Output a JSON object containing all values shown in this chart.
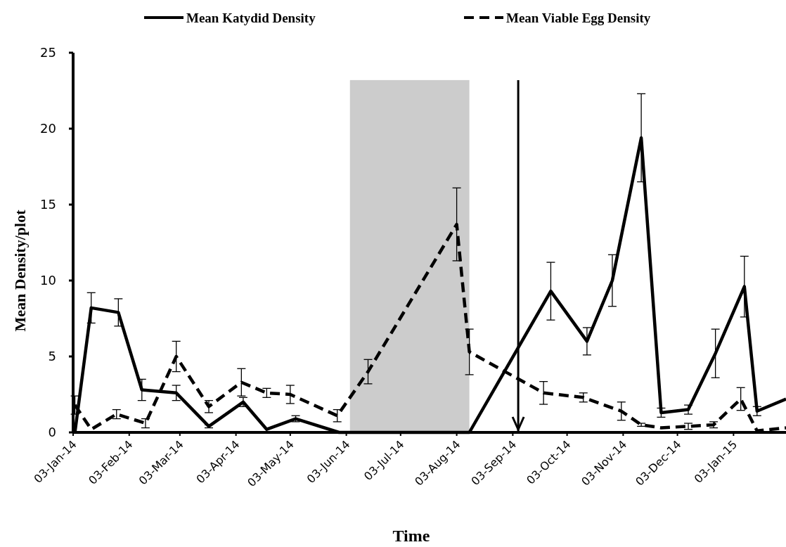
{
  "chart_data": {
    "type": "line",
    "xlabel": "Time",
    "ylabel": "Mean Density/plot",
    "legend": "top",
    "marker": "none",
    "grid": false,
    "xlim": [
      "2014-01-03",
      "2015-02-01"
    ],
    "ylim": [
      0,
      25
    ],
    "yticks": [
      0,
      5,
      10,
      15,
      20,
      25
    ],
    "xticks": [
      {
        "value": "2014-01-03",
        "label": "03-Jan-14"
      },
      {
        "value": "2014-02-03",
        "label": "03-Feb-14"
      },
      {
        "value": "2014-03-03",
        "label": "03-Mar-14"
      },
      {
        "value": "2014-04-03",
        "label": "03-Apr-14"
      },
      {
        "value": "2014-05-03",
        "label": "03-May-14"
      },
      {
        "value": "2014-06-03",
        "label": "03-Jun-14"
      },
      {
        "value": "2014-07-03",
        "label": "03-Jul-14"
      },
      {
        "value": "2014-08-03",
        "label": "03-Aug-14"
      },
      {
        "value": "2014-09-03",
        "label": "03-Sep-14"
      },
      {
        "value": "2014-10-03",
        "label": "03-Oct-14"
      },
      {
        "value": "2014-11-03",
        "label": "03-Nov-14"
      },
      {
        "value": "2014-12-03",
        "label": "03-Dec-14"
      },
      {
        "value": "2015-01-03",
        "label": "03-Jan-15"
      }
    ],
    "series": [
      {
        "name": "Mean Katydid Density",
        "color": "#000000",
        "line_style": "solid",
        "x": [
          "2014-01-04",
          "2014-01-13",
          "2014-01-28",
          "2014-02-10",
          "2014-03-01",
          "2014-03-19",
          "2014-04-07",
          "2014-04-20",
          "2014-05-06",
          "2014-05-30",
          "2014-08-10",
          "2014-09-24",
          "2014-10-14",
          "2014-10-28",
          "2014-11-13",
          "2014-11-24",
          "2014-12-09",
          "2014-12-24",
          "2015-01-09",
          "2015-01-16",
          "2015-02-01"
        ],
        "values": [
          0,
          8.2,
          7.9,
          2.8,
          2.6,
          0.4,
          2.0,
          0.2,
          0.9,
          0,
          0,
          9.3,
          6.0,
          10.0,
          19.4,
          1.3,
          1.5,
          5.2,
          9.6,
          1.4,
          2.2
        ],
        "errors": [
          null,
          1.0,
          0.9,
          0.7,
          0.5,
          0.1,
          0.3,
          null,
          0.2,
          null,
          null,
          1.9,
          0.9,
          1.7,
          2.9,
          0.3,
          0.3,
          1.6,
          2.0,
          0.3,
          null
        ]
      },
      {
        "name": "Mean Viable Egg Density",
        "color": "#000000",
        "line_style": "dashed",
        "x": [
          "2014-01-04",
          "2014-01-13",
          "2014-01-27",
          "2014-02-12",
          "2014-03-01",
          "2014-03-19",
          "2014-04-06",
          "2014-04-20",
          "2014-05-03",
          "2014-05-29",
          "2014-06-15",
          "2014-08-03",
          "2014-08-10",
          "2014-09-20",
          "2014-10-12",
          "2014-11-02",
          "2014-11-13",
          "2014-11-24",
          "2014-12-09",
          "2014-12-23",
          "2015-01-07",
          "2015-01-16",
          "2015-02-01"
        ],
        "values": [
          1.8,
          0.2,
          1.2,
          0.6,
          5.0,
          1.7,
          3.3,
          2.6,
          2.5,
          1.1,
          4.0,
          13.7,
          5.3,
          2.6,
          2.3,
          1.4,
          0.5,
          0.3,
          0.4,
          0.5,
          2.2,
          0.1,
          0.3
        ],
        "errors": [
          0.6,
          null,
          0.3,
          0.3,
          1.0,
          0.4,
          0.9,
          0.3,
          0.6,
          0.4,
          0.8,
          2.4,
          1.5,
          0.75,
          0.3,
          0.6,
          0.1,
          null,
          0.2,
          0.2,
          0.75,
          null,
          null
        ]
      }
    ],
    "bands": [
      {
        "axis": "x",
        "from": "2014-06-05",
        "to": "2014-08-10",
        "color": "#cccccc"
      }
    ],
    "ref_lines": [
      {
        "axis": "x",
        "value": "2014-09-06",
        "color": "#000000"
      }
    ]
  }
}
